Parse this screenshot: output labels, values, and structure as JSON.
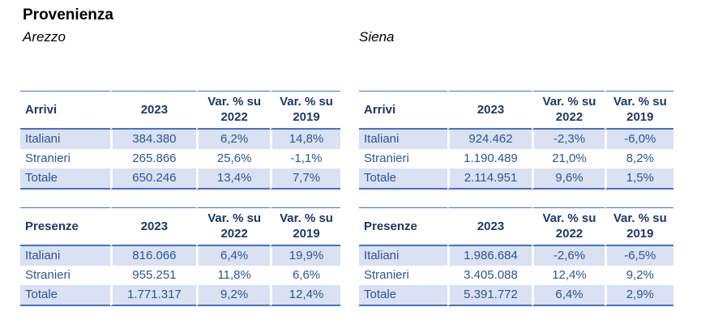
{
  "page": {
    "title": "Provenienza"
  },
  "palette": {
    "header_text": "#1F3864",
    "body_text": "#2F5496",
    "border_blue": "#4472C4",
    "row_fill": "#D9E1F2"
  },
  "sections": [
    {
      "region": "Arezzo",
      "tables": [
        {
          "label": "Arrivi",
          "columns": [
            "2023",
            "Var. % su 2022",
            "Var. % su 2019"
          ],
          "rows": [
            {
              "label": "Italiani",
              "values": [
                "384.380",
                "6,2%",
                "14,8%"
              ]
            },
            {
              "label": "Stranieri",
              "values": [
                "265.866",
                "25,6%",
                "-1,1%"
              ]
            },
            {
              "label": "Totale",
              "values": [
                "650.246",
                "13,4%",
                "7,7%"
              ]
            }
          ]
        },
        {
          "label": "Presenze",
          "columns": [
            "2023",
            "Var. % su 2022",
            "Var. % su 2019"
          ],
          "rows": [
            {
              "label": "Italiani",
              "values": [
                "816.066",
                "6,4%",
                "19,9%"
              ]
            },
            {
              "label": "Stranieri",
              "values": [
                "955.251",
                "11,8%",
                "6,6%"
              ]
            },
            {
              "label": "Totale",
              "values": [
                "1.771.317",
                "9,2%",
                "12,4%"
              ]
            }
          ]
        }
      ]
    },
    {
      "region": "Siena",
      "tables": [
        {
          "label": "Arrivi",
          "columns": [
            "2023",
            "Var. % su 2022",
            "Var. % su 2019"
          ],
          "rows": [
            {
              "label": "Italiani",
              "values": [
                "924.462",
                "-2,3%",
                "-6,0%"
              ]
            },
            {
              "label": "Stranieri",
              "values": [
                "1.190.489",
                "21,0%",
                "8,2%"
              ]
            },
            {
              "label": "Totale",
              "values": [
                "2.114.951",
                "9,6%",
                "1,5%"
              ]
            }
          ]
        },
        {
          "label": "Presenze",
          "columns": [
            "2023",
            "Var. % su 2022",
            "Var. % su 2019"
          ],
          "rows": [
            {
              "label": "Italiani",
              "values": [
                "1.986.684",
                "-2,6%",
                "-6,5%"
              ]
            },
            {
              "label": "Stranieri",
              "values": [
                "3.405.088",
                "12,4%",
                "9,2%"
              ]
            },
            {
              "label": "Totale",
              "values": [
                "5.391.772",
                "6,4%",
                "2,9%"
              ]
            }
          ]
        }
      ]
    }
  ]
}
